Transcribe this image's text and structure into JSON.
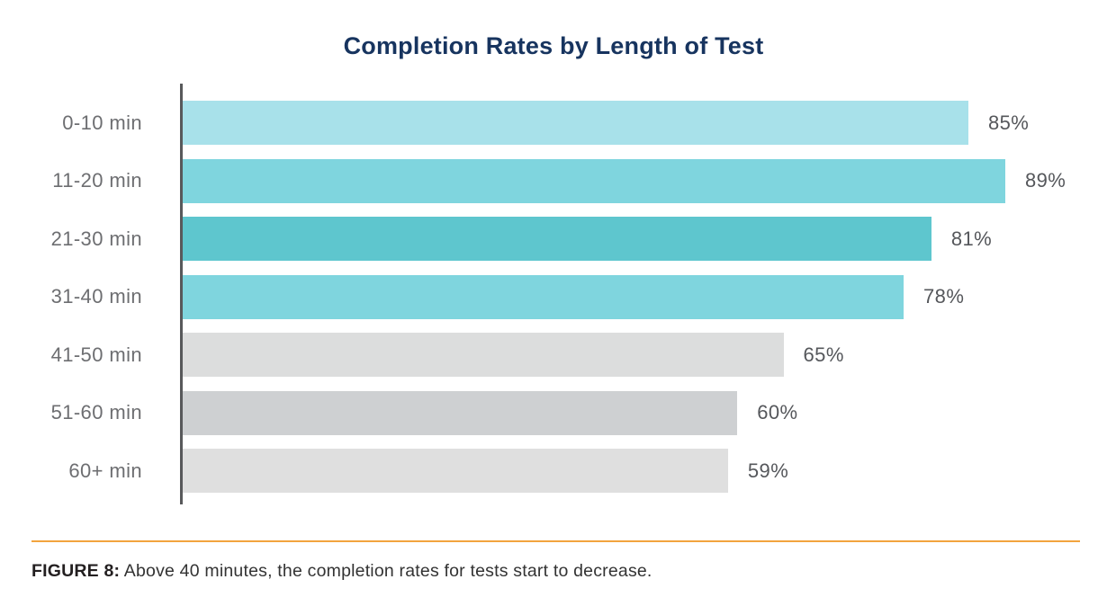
{
  "title": "Completion Rates by Length of Test",
  "chart_data": {
    "type": "bar",
    "orientation": "horizontal",
    "title": "Completion Rates by Length of Test",
    "categories": [
      "0-10 min",
      "11-20 min",
      "21-30 min",
      "31-40 min",
      "41-50 min",
      "51-60 min",
      "60+ min"
    ],
    "values": [
      85,
      89,
      81,
      78,
      65,
      60,
      59
    ],
    "value_labels": [
      "85%",
      "89%",
      "81%",
      "78%",
      "65%",
      "60%",
      "59%"
    ],
    "bar_colors": [
      "#a8e1ea",
      "#7fd5de",
      "#5ec6ce",
      "#7fd5de",
      "#dcdddd",
      "#ced0d2",
      "#dfdfdf"
    ],
    "xlim": [
      0,
      100
    ],
    "grid": false,
    "legend": false,
    "axis_color": "#58595b"
  },
  "caption": {
    "label": "FIGURE 8:",
    "text": " Above 40 minutes, the completion rates for tests start to decrease."
  },
  "colors": {
    "title_text": "#17345f",
    "category_label": "#6d6e71",
    "value_label": "#55575b",
    "axis_line": "#58595b",
    "divider": "#f2a43e",
    "caption_label": "#231f20",
    "caption_text": "#333333",
    "background": "#ffffff"
  }
}
